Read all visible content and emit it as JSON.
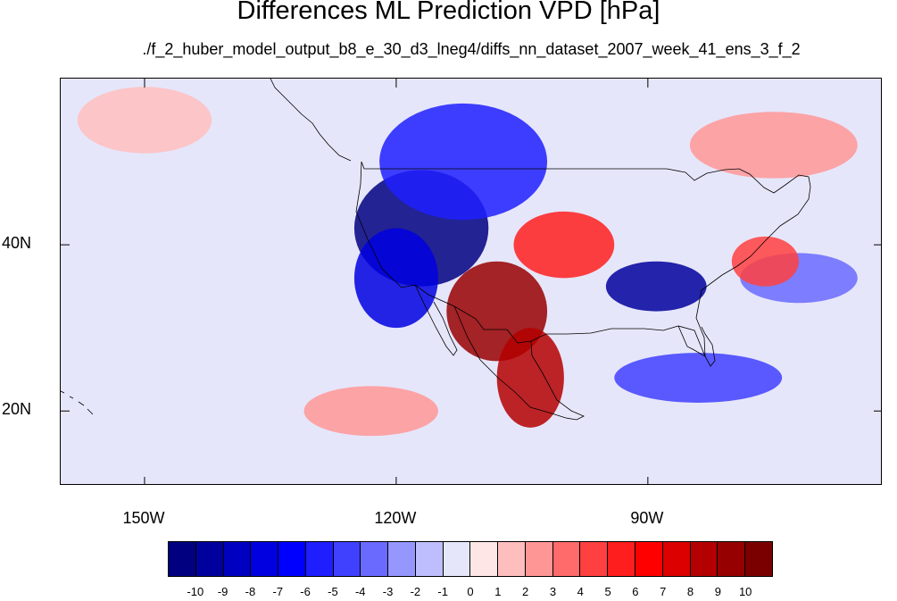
{
  "title": "Differences ML Prediction VPD [hPa]",
  "subtitle": "./f_2_huber_model_output_b8_e_30_d3_lneg4/diffs_nn_dataset_2007_week_41_ens_3_f_2",
  "map": {
    "lon_range": [
      -160,
      -62
    ],
    "lat_range": [
      11,
      60
    ],
    "lat_labels": [
      {
        "lat": 40,
        "label": "40N"
      },
      {
        "lat": 20,
        "label": "20N"
      }
    ],
    "lon_labels": [
      {
        "lon": -150,
        "label": "150W"
      },
      {
        "lon": -120,
        "label": "120W"
      },
      {
        "lon": -90,
        "label": "90W"
      }
    ],
    "regions": [
      {
        "name": "northwest-negative",
        "level": -10,
        "lon": -117,
        "lat": 42,
        "rx": 8,
        "ry": 7
      },
      {
        "name": "canada-negative",
        "level": -5,
        "lon": -112,
        "lat": 50,
        "rx": 10,
        "ry": 7
      },
      {
        "name": "california-negative",
        "level": -7,
        "lon": -120,
        "lat": 36,
        "rx": 5,
        "ry": 6
      },
      {
        "name": "southwest-positive",
        "level": 9,
        "lon": -108,
        "lat": 32,
        "rx": 6,
        "ry": 6
      },
      {
        "name": "mexico-positive",
        "level": 8,
        "lon": -104,
        "lat": 24,
        "rx": 4,
        "ry": 6
      },
      {
        "name": "plains-positive",
        "level": 5,
        "lon": -100,
        "lat": 40,
        "rx": 6,
        "ry": 4
      },
      {
        "name": "midsouth-negative",
        "level": -9,
        "lon": -89,
        "lat": 35,
        "rx": 6,
        "ry": 3
      },
      {
        "name": "gulf-negative",
        "level": -4,
        "lon": -84,
        "lat": 24,
        "rx": 10,
        "ry": 3
      },
      {
        "name": "atlantic-negative",
        "level": -3,
        "lon": -72,
        "lat": 36,
        "rx": 7,
        "ry": 3
      },
      {
        "name": "northeast-positive",
        "level": 4,
        "lon": -76,
        "lat": 38,
        "rx": 4,
        "ry": 3
      },
      {
        "name": "pacific-positive",
        "level": 2,
        "lon": -123,
        "lat": 20,
        "rx": 8,
        "ry": 3
      },
      {
        "name": "north-pacific-positive",
        "level": 1,
        "lon": -150,
        "lat": 55,
        "rx": 8,
        "ry": 4
      },
      {
        "name": "eastern-canada-positive",
        "level": 2,
        "lon": -75,
        "lat": 52,
        "rx": 10,
        "ry": 4
      }
    ]
  },
  "colorbar": {
    "labels": [
      "-10",
      "-9",
      "-8",
      "-7",
      "-6",
      "-5",
      "-4",
      "-3",
      "-2",
      "-1",
      "0",
      "1",
      "2",
      "3",
      "4",
      "5",
      "6",
      "7",
      "8",
      "9",
      "10"
    ],
    "colors": [
      "#000080",
      "#00009c",
      "#0000c0",
      "#0000e0",
      "#0000ff",
      "#1e1eff",
      "#4040ff",
      "#6a6aff",
      "#9696ff",
      "#bebeff",
      "#e6e6fa",
      "#ffe6e6",
      "#ffbebe",
      "#ff9696",
      "#ff6a6a",
      "#ff4040",
      "#ff1e1e",
      "#ff0000",
      "#dc0000",
      "#b40000",
      "#960000",
      "#7a0000"
    ]
  }
}
